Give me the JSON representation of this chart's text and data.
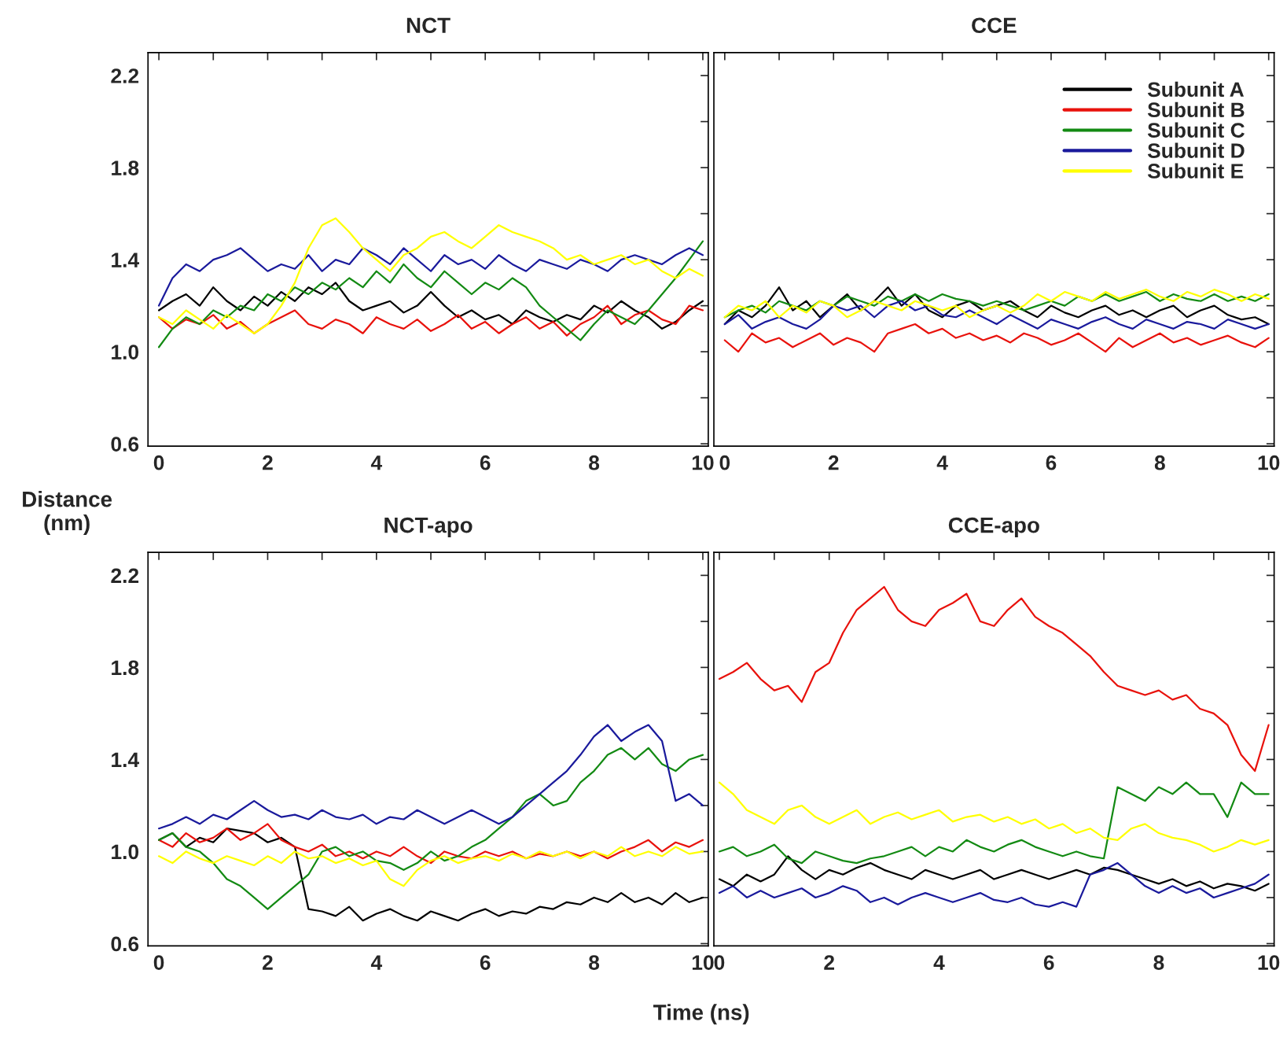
{
  "chart_data": [
    {
      "type": "line",
      "title": "NCT",
      "ylabel": "Distance\n(nm)",
      "x": [
        0,
        0.25,
        0.5,
        0.75,
        1,
        1.25,
        1.5,
        1.75,
        2,
        2.25,
        2.5,
        2.75,
        3,
        3.25,
        3.5,
        3.75,
        4,
        4.25,
        4.5,
        4.75,
        5,
        5.25,
        5.5,
        5.75,
        6,
        6.25,
        6.5,
        6.75,
        7,
        7.25,
        7.5,
        7.75,
        8,
        8.25,
        8.5,
        8.75,
        9,
        9.25,
        9.5,
        9.75,
        10
      ],
      "xlim": [
        -0.2,
        10.1
      ],
      "ylim": [
        0.59,
        2.3
      ],
      "xticks": [
        0,
        {
          "value": 1,
          "label": null
        },
        2,
        {
          "value": 3,
          "label": null
        },
        4,
        {
          "value": 5,
          "label": null
        },
        6,
        {
          "value": 7,
          "label": null
        },
        8,
        {
          "value": 9,
          "label": null
        },
        10
      ],
      "yticks": [
        0.6,
        {
          "value": 0.8,
          "label": null
        },
        {
          "value": 1.0,
          "label": "1.0"
        },
        {
          "value": 1.2,
          "label": null
        },
        1.4,
        {
          "value": 1.6,
          "label": null
        },
        1.8,
        {
          "value": 2.0,
          "label": null
        },
        2.2
      ],
      "grid": false,
      "legend": false,
      "series": [
        {
          "color": "#000000",
          "values": [
            1.18,
            1.22,
            1.25,
            1.2,
            1.28,
            1.22,
            1.18,
            1.24,
            1.2,
            1.26,
            1.22,
            1.28,
            1.25,
            1.3,
            1.22,
            1.18,
            1.2,
            1.22,
            1.17,
            1.2,
            1.26,
            1.2,
            1.15,
            1.18,
            1.14,
            1.16,
            1.12,
            1.18,
            1.15,
            1.13,
            1.16,
            1.14,
            1.2,
            1.17,
            1.22,
            1.18,
            1.15,
            1.1,
            1.13,
            1.18,
            1.22
          ]
        },
        {
          "color": "#e8120c",
          "values": [
            1.15,
            1.1,
            1.14,
            1.12,
            1.16,
            1.1,
            1.13,
            1.08,
            1.12,
            1.15,
            1.18,
            1.12,
            1.1,
            1.14,
            1.12,
            1.08,
            1.15,
            1.12,
            1.1,
            1.14,
            1.09,
            1.12,
            1.16,
            1.1,
            1.13,
            1.08,
            1.12,
            1.15,
            1.1,
            1.13,
            1.07,
            1.12,
            1.15,
            1.2,
            1.12,
            1.16,
            1.18,
            1.14,
            1.12,
            1.2,
            1.18
          ]
        },
        {
          "color": "#138a13",
          "values": [
            1.02,
            1.1,
            1.15,
            1.12,
            1.18,
            1.15,
            1.2,
            1.18,
            1.25,
            1.22,
            1.28,
            1.25,
            1.3,
            1.27,
            1.32,
            1.28,
            1.35,
            1.3,
            1.38,
            1.32,
            1.28,
            1.35,
            1.3,
            1.25,
            1.3,
            1.27,
            1.32,
            1.28,
            1.2,
            1.15,
            1.1,
            1.05,
            1.12,
            1.18,
            1.15,
            1.12,
            1.18,
            1.25,
            1.32,
            1.4,
            1.48
          ]
        },
        {
          "color": "#1a1a9c",
          "values": [
            1.2,
            1.32,
            1.38,
            1.35,
            1.4,
            1.42,
            1.45,
            1.4,
            1.35,
            1.38,
            1.36,
            1.42,
            1.35,
            1.4,
            1.38,
            1.45,
            1.42,
            1.38,
            1.45,
            1.4,
            1.35,
            1.42,
            1.38,
            1.4,
            1.36,
            1.42,
            1.38,
            1.35,
            1.4,
            1.38,
            1.36,
            1.4,
            1.38,
            1.35,
            1.4,
            1.42,
            1.4,
            1.38,
            1.42,
            1.45,
            1.42
          ]
        },
        {
          "color": "#ffff00",
          "values": [
            1.15,
            1.12,
            1.18,
            1.14,
            1.1,
            1.16,
            1.12,
            1.08,
            1.12,
            1.2,
            1.3,
            1.45,
            1.55,
            1.58,
            1.52,
            1.45,
            1.4,
            1.35,
            1.42,
            1.45,
            1.5,
            1.52,
            1.48,
            1.45,
            1.5,
            1.55,
            1.52,
            1.5,
            1.48,
            1.45,
            1.4,
            1.42,
            1.38,
            1.4,
            1.42,
            1.38,
            1.4,
            1.35,
            1.32,
            1.36,
            1.33
          ]
        }
      ]
    },
    {
      "type": "line",
      "title": "CCE",
      "x": [
        0,
        0.25,
        0.5,
        0.75,
        1,
        1.25,
        1.5,
        1.75,
        2,
        2.25,
        2.5,
        2.75,
        3,
        3.25,
        3.5,
        3.75,
        4,
        4.25,
        4.5,
        4.75,
        5,
        5.25,
        5.5,
        5.75,
        6,
        6.25,
        6.5,
        6.75,
        7,
        7.25,
        7.5,
        7.75,
        8,
        8.25,
        8.5,
        8.75,
        9,
        9.25,
        9.5,
        9.75,
        10
      ],
      "xlim": [
        -0.2,
        10.1
      ],
      "ylim": [
        0.59,
        2.3
      ],
      "xticks": [
        0,
        {
          "value": 1,
          "label": null
        },
        2,
        {
          "value": 3,
          "label": null
        },
        4,
        {
          "value": 5,
          "label": null
        },
        6,
        {
          "value": 7,
          "label": null
        },
        8,
        {
          "value": 9,
          "label": null
        },
        10
      ],
      "yticks": [
        {
          "value": 0.6,
          "label": null
        },
        {
          "value": 0.8,
          "label": null
        },
        {
          "value": 1.0,
          "label": null
        },
        {
          "value": 1.2,
          "label": null
        },
        {
          "value": 1.4,
          "label": null
        },
        {
          "value": 1.6,
          "label": null
        },
        {
          "value": 1.8,
          "label": null
        },
        {
          "value": 2.0,
          "label": null
        },
        {
          "value": 2.2,
          "label": null
        }
      ],
      "tick_labels": "x",
      "grid": false,
      "legend": "top right",
      "series": [
        {
          "name": "Subunit A",
          "color": "#000000",
          "values": [
            1.12,
            1.18,
            1.15,
            1.2,
            1.28,
            1.18,
            1.22,
            1.15,
            1.2,
            1.25,
            1.18,
            1.22,
            1.28,
            1.2,
            1.25,
            1.18,
            1.15,
            1.2,
            1.22,
            1.18,
            1.2,
            1.22,
            1.18,
            1.15,
            1.2,
            1.17,
            1.15,
            1.18,
            1.2,
            1.16,
            1.18,
            1.15,
            1.18,
            1.2,
            1.15,
            1.18,
            1.2,
            1.16,
            1.14,
            1.15,
            1.12
          ]
        },
        {
          "name": "Subunit B",
          "color": "#e8120c",
          "values": [
            1.05,
            1.0,
            1.08,
            1.04,
            1.06,
            1.02,
            1.05,
            1.08,
            1.03,
            1.06,
            1.04,
            1.0,
            1.08,
            1.1,
            1.12,
            1.08,
            1.1,
            1.06,
            1.08,
            1.05,
            1.07,
            1.04,
            1.08,
            1.06,
            1.03,
            1.05,
            1.08,
            1.04,
            1.0,
            1.06,
            1.02,
            1.05,
            1.08,
            1.04,
            1.06,
            1.03,
            1.05,
            1.07,
            1.04,
            1.02,
            1.06
          ]
        },
        {
          "name": "Subunit C",
          "color": "#138a13",
          "values": [
            1.15,
            1.18,
            1.2,
            1.17,
            1.22,
            1.2,
            1.18,
            1.22,
            1.2,
            1.24,
            1.22,
            1.2,
            1.24,
            1.22,
            1.25,
            1.22,
            1.25,
            1.23,
            1.22,
            1.2,
            1.22,
            1.2,
            1.18,
            1.2,
            1.22,
            1.2,
            1.24,
            1.22,
            1.25,
            1.22,
            1.24,
            1.26,
            1.22,
            1.25,
            1.23,
            1.22,
            1.25,
            1.22,
            1.24,
            1.22,
            1.25
          ]
        },
        {
          "name": "Subunit D",
          "color": "#1a1a9c",
          "values": [
            1.12,
            1.16,
            1.1,
            1.13,
            1.15,
            1.12,
            1.1,
            1.14,
            1.2,
            1.18,
            1.2,
            1.15,
            1.2,
            1.22,
            1.18,
            1.2,
            1.16,
            1.15,
            1.18,
            1.15,
            1.12,
            1.16,
            1.13,
            1.1,
            1.14,
            1.12,
            1.1,
            1.13,
            1.15,
            1.12,
            1.1,
            1.14,
            1.12,
            1.1,
            1.13,
            1.12,
            1.1,
            1.14,
            1.12,
            1.1,
            1.12
          ]
        },
        {
          "name": "Subunit E",
          "color": "#ffff00",
          "values": [
            1.15,
            1.2,
            1.18,
            1.22,
            1.15,
            1.2,
            1.17,
            1.22,
            1.2,
            1.15,
            1.18,
            1.22,
            1.2,
            1.18,
            1.22,
            1.2,
            1.18,
            1.2,
            1.15,
            1.18,
            1.2,
            1.17,
            1.2,
            1.25,
            1.22,
            1.26,
            1.24,
            1.22,
            1.26,
            1.23,
            1.25,
            1.27,
            1.24,
            1.22,
            1.26,
            1.24,
            1.27,
            1.25,
            1.22,
            1.25,
            1.23
          ]
        }
      ]
    },
    {
      "type": "line",
      "title": "NCT-apo",
      "x": [
        0,
        0.25,
        0.5,
        0.75,
        1,
        1.25,
        1.5,
        1.75,
        2,
        2.25,
        2.5,
        2.75,
        3,
        3.25,
        3.5,
        3.75,
        4,
        4.25,
        4.5,
        4.75,
        5,
        5.25,
        5.5,
        5.75,
        6,
        6.25,
        6.5,
        6.75,
        7,
        7.25,
        7.5,
        7.75,
        8,
        8.25,
        8.5,
        8.75,
        9,
        9.25,
        9.5,
        9.75,
        10
      ],
      "xlim": [
        -0.2,
        10.1
      ],
      "ylim": [
        0.59,
        2.3
      ],
      "xticks": [
        0,
        {
          "value": 1,
          "label": null
        },
        2,
        {
          "value": 3,
          "label": null
        },
        4,
        {
          "value": 5,
          "label": null
        },
        6,
        {
          "value": 7,
          "label": null
        },
        8,
        {
          "value": 9,
          "label": null
        },
        10
      ],
      "yticks": [
        0.6,
        {
          "value": 0.8,
          "label": null
        },
        {
          "value": 1.0,
          "label": "1.0"
        },
        {
          "value": 1.2,
          "label": null
        },
        1.4,
        {
          "value": 1.6,
          "label": null
        },
        1.8,
        {
          "value": 2.0,
          "label": null
        },
        2.2
      ],
      "grid": false,
      "legend": false,
      "series": [
        {
          "color": "#000000",
          "values": [
            1.05,
            1.08,
            1.02,
            1.06,
            1.04,
            1.1,
            1.09,
            1.08,
            1.04,
            1.06,
            1.02,
            0.75,
            0.74,
            0.72,
            0.76,
            0.7,
            0.73,
            0.75,
            0.72,
            0.7,
            0.74,
            0.72,
            0.7,
            0.73,
            0.75,
            0.72,
            0.74,
            0.73,
            0.76,
            0.75,
            0.78,
            0.77,
            0.8,
            0.78,
            0.82,
            0.78,
            0.8,
            0.77,
            0.82,
            0.78,
            0.8
          ]
        },
        {
          "color": "#e8120c",
          "values": [
            1.05,
            1.02,
            1.08,
            1.04,
            1.06,
            1.1,
            1.05,
            1.08,
            1.12,
            1.05,
            1.02,
            1.0,
            1.03,
            0.98,
            1.0,
            0.97,
            1.0,
            0.98,
            1.02,
            0.98,
            0.95,
            1.0,
            0.98,
            0.97,
            1.0,
            0.98,
            1.0,
            0.97,
            0.99,
            0.98,
            1.0,
            0.98,
            1.0,
            0.97,
            1.0,
            1.02,
            1.05,
            1.0,
            1.04,
            1.02,
            1.05
          ]
        },
        {
          "color": "#138a13",
          "values": [
            1.05,
            1.08,
            1.02,
            1.0,
            0.95,
            0.88,
            0.85,
            0.8,
            0.75,
            0.8,
            0.85,
            0.9,
            1.0,
            1.02,
            0.98,
            1.0,
            0.96,
            0.95,
            0.92,
            0.95,
            1.0,
            0.96,
            0.98,
            1.02,
            1.05,
            1.1,
            1.15,
            1.22,
            1.25,
            1.2,
            1.22,
            1.3,
            1.35,
            1.42,
            1.45,
            1.4,
            1.45,
            1.38,
            1.35,
            1.4,
            1.42
          ]
        },
        {
          "color": "#1a1a9c",
          "values": [
            1.1,
            1.12,
            1.15,
            1.12,
            1.16,
            1.14,
            1.18,
            1.22,
            1.18,
            1.15,
            1.16,
            1.14,
            1.18,
            1.15,
            1.14,
            1.16,
            1.12,
            1.15,
            1.14,
            1.18,
            1.15,
            1.12,
            1.15,
            1.18,
            1.15,
            1.12,
            1.15,
            1.2,
            1.25,
            1.3,
            1.35,
            1.42,
            1.5,
            1.55,
            1.48,
            1.52,
            1.55,
            1.48,
            1.22,
            1.25,
            1.2
          ]
        },
        {
          "color": "#ffff00",
          "values": [
            0.98,
            0.95,
            1.0,
            0.97,
            0.95,
            0.98,
            0.96,
            0.94,
            0.98,
            0.95,
            1.0,
            0.97,
            0.98,
            0.95,
            0.97,
            0.94,
            0.96,
            0.88,
            0.85,
            0.92,
            0.96,
            0.98,
            0.95,
            0.97,
            0.98,
            0.96,
            0.99,
            0.97,
            1.0,
            0.98,
            1.0,
            0.97,
            1.0,
            0.98,
            1.02,
            0.98,
            1.0,
            0.98,
            1.02,
            0.99,
            1.0
          ]
        }
      ]
    },
    {
      "type": "line",
      "title": "CCE-apo",
      "xlabel": "Time (ns)",
      "x": [
        0,
        0.25,
        0.5,
        0.75,
        1,
        1.25,
        1.5,
        1.75,
        2,
        2.25,
        2.5,
        2.75,
        3,
        3.25,
        3.5,
        3.75,
        4,
        4.25,
        4.5,
        4.75,
        5,
        5.25,
        5.5,
        5.75,
        6,
        6.25,
        6.5,
        6.75,
        7,
        7.25,
        7.5,
        7.75,
        8,
        8.25,
        8.5,
        8.75,
        9,
        9.25,
        9.5,
        9.75,
        10
      ],
      "xlim": [
        -0.1,
        10.1
      ],
      "ylim": [
        0.59,
        2.3
      ],
      "xticks": [
        0,
        {
          "value": 1,
          "label": null
        },
        2,
        {
          "value": 3,
          "label": null
        },
        4,
        {
          "value": 5,
          "label": null
        },
        6,
        {
          "value": 7,
          "label": null
        },
        8,
        {
          "value": 9,
          "label": null
        },
        10
      ],
      "yticks": [
        {
          "value": 0.6,
          "label": null
        },
        {
          "value": 0.8,
          "label": null
        },
        {
          "value": 1.0,
          "label": null
        },
        {
          "value": 1.2,
          "label": null
        },
        {
          "value": 1.4,
          "label": null
        },
        {
          "value": 1.6,
          "label": null
        },
        {
          "value": 1.8,
          "label": null
        },
        {
          "value": 2.0,
          "label": null
        },
        {
          "value": 2.2,
          "label": null
        }
      ],
      "tick_labels": "x",
      "grid": false,
      "legend": false,
      "series": [
        {
          "color": "#000000",
          "values": [
            0.88,
            0.85,
            0.9,
            0.87,
            0.9,
            0.98,
            0.92,
            0.88,
            0.92,
            0.9,
            0.93,
            0.95,
            0.92,
            0.9,
            0.88,
            0.92,
            0.9,
            0.88,
            0.9,
            0.92,
            0.88,
            0.9,
            0.92,
            0.9,
            0.88,
            0.9,
            0.92,
            0.9,
            0.93,
            0.92,
            0.9,
            0.88,
            0.86,
            0.88,
            0.85,
            0.87,
            0.84,
            0.86,
            0.85,
            0.83,
            0.86
          ]
        },
        {
          "color": "#e8120c",
          "values": [
            1.75,
            1.78,
            1.82,
            1.75,
            1.7,
            1.72,
            1.65,
            1.78,
            1.82,
            1.95,
            2.05,
            2.1,
            2.15,
            2.05,
            2.0,
            1.98,
            2.05,
            2.08,
            2.12,
            2.0,
            1.98,
            2.05,
            2.1,
            2.02,
            1.98,
            1.95,
            1.9,
            1.85,
            1.78,
            1.72,
            1.7,
            1.68,
            1.7,
            1.66,
            1.68,
            1.62,
            1.6,
            1.55,
            1.42,
            1.35,
            1.55
          ]
        },
        {
          "color": "#138a13",
          "values": [
            1.0,
            1.02,
            0.98,
            1.0,
            1.03,
            0.97,
            0.95,
            1.0,
            0.98,
            0.96,
            0.95,
            0.97,
            0.98,
            1.0,
            1.02,
            0.98,
            1.02,
            1.0,
            1.05,
            1.02,
            1.0,
            1.03,
            1.05,
            1.02,
            1.0,
            0.98,
            1.0,
            0.98,
            0.97,
            1.28,
            1.25,
            1.22,
            1.28,
            1.25,
            1.3,
            1.25,
            1.25,
            1.15,
            1.3,
            1.25,
            1.25
          ]
        },
        {
          "color": "#1a1a9c",
          "values": [
            0.82,
            0.85,
            0.8,
            0.83,
            0.8,
            0.82,
            0.84,
            0.8,
            0.82,
            0.85,
            0.83,
            0.78,
            0.8,
            0.77,
            0.8,
            0.82,
            0.8,
            0.78,
            0.8,
            0.82,
            0.79,
            0.78,
            0.8,
            0.77,
            0.76,
            0.78,
            0.76,
            0.9,
            0.92,
            0.95,
            0.9,
            0.85,
            0.82,
            0.85,
            0.82,
            0.84,
            0.8,
            0.82,
            0.84,
            0.86,
            0.9
          ]
        },
        {
          "color": "#ffff00",
          "values": [
            1.3,
            1.25,
            1.18,
            1.15,
            1.12,
            1.18,
            1.2,
            1.15,
            1.12,
            1.15,
            1.18,
            1.12,
            1.15,
            1.17,
            1.14,
            1.16,
            1.18,
            1.13,
            1.15,
            1.16,
            1.13,
            1.15,
            1.12,
            1.14,
            1.1,
            1.12,
            1.08,
            1.1,
            1.06,
            1.05,
            1.1,
            1.12,
            1.08,
            1.06,
            1.05,
            1.03,
            1.0,
            1.02,
            1.05,
            1.03,
            1.05
          ]
        }
      ]
    }
  ]
}
